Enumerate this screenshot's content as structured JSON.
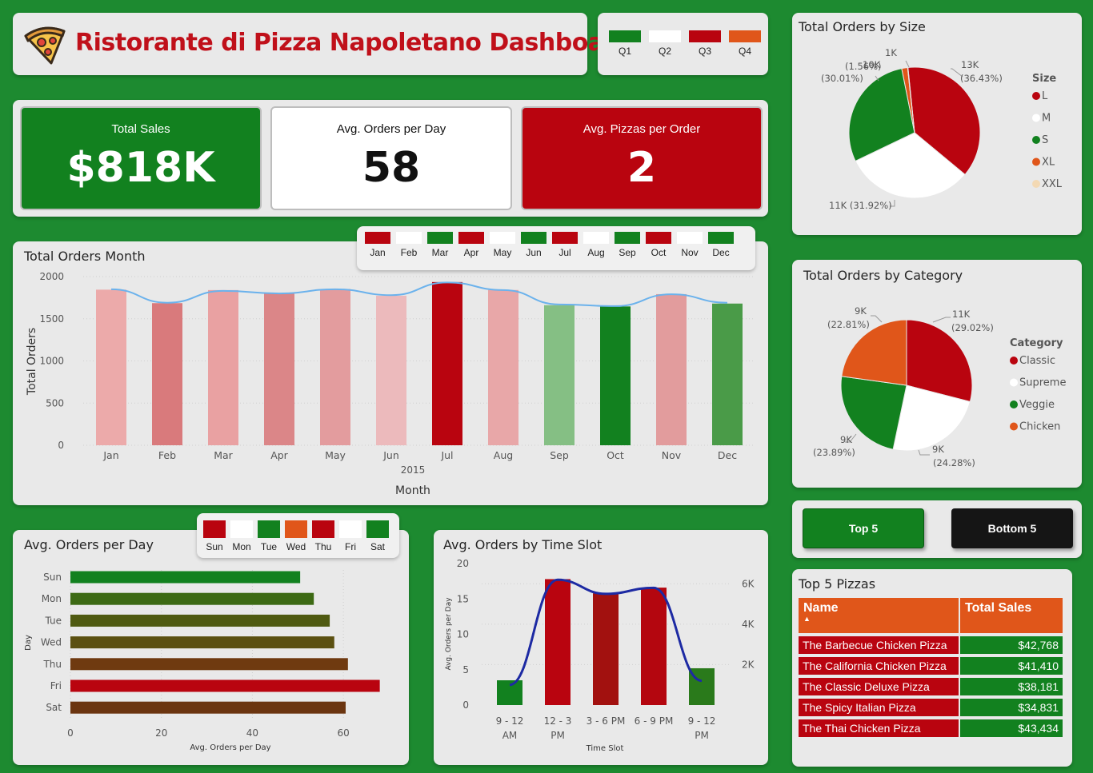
{
  "header": {
    "title": "Ristorante di Pizza Napoletano Dashboard",
    "logo_icon": "pizza-slice-icon"
  },
  "quarters": [
    {
      "label": "Q1",
      "color": "#12811f"
    },
    {
      "label": "Q2",
      "color": "#ffffff"
    },
    {
      "label": "Q3",
      "color": "#b9040f"
    },
    {
      "label": "Q4",
      "color": "#e0561a"
    }
  ],
  "kpis": {
    "total_sales": {
      "label": "Total Sales",
      "value": "$818K"
    },
    "avg_orders_day": {
      "label": "Avg. Orders per Day",
      "value": "58"
    },
    "avg_pizzas_order": {
      "label": "Avg. Pizzas per Order",
      "value": "2"
    }
  },
  "month_slicer": [
    {
      "label": "Jan",
      "color": "#b9040f"
    },
    {
      "label": "Feb",
      "color": "#ffffff"
    },
    {
      "label": "Mar",
      "color": "#12811f"
    },
    {
      "label": "Apr",
      "color": "#b9040f"
    },
    {
      "label": "May",
      "color": "#ffffff"
    },
    {
      "label": "Jun",
      "color": "#12811f"
    },
    {
      "label": "Jul",
      "color": "#b9040f"
    },
    {
      "label": "Aug",
      "color": "#ffffff"
    },
    {
      "label": "Sep",
      "color": "#12811f"
    },
    {
      "label": "Oct",
      "color": "#b9040f"
    },
    {
      "label": "Nov",
      "color": "#ffffff"
    },
    {
      "label": "Dec",
      "color": "#12811f"
    }
  ],
  "day_slicer": [
    {
      "label": "Sun",
      "color": "#b9040f"
    },
    {
      "label": "Mon",
      "color": "#ffffff"
    },
    {
      "label": "Tue",
      "color": "#12811f"
    },
    {
      "label": "Wed",
      "color": "#e0561a"
    },
    {
      "label": "Thu",
      "color": "#b9040f"
    },
    {
      "label": "Fri",
      "color": "#ffffff"
    },
    {
      "label": "Sat",
      "color": "#12811f"
    }
  ],
  "buttons": {
    "top5": "Top 5",
    "bottom5": "Bottom 5"
  },
  "top_pizzas": {
    "title": "Top 5 Pizzas",
    "headers": [
      "Name",
      "Total Sales"
    ],
    "rows": [
      {
        "name": "The Barbecue Chicken Pizza",
        "sales": "$42,768"
      },
      {
        "name": "The California Chicken Pizza",
        "sales": "$41,410"
      },
      {
        "name": "The Classic Deluxe Pizza",
        "sales": "$38,181"
      },
      {
        "name": "The Spicy Italian Pizza",
        "sales": "$34,831"
      },
      {
        "name": "The Thai Chicken Pizza",
        "sales": "$43,434"
      }
    ]
  },
  "chart_data": [
    {
      "id": "orders_by_size",
      "type": "pie",
      "title": "Total Orders by Size",
      "legend_title": "Size",
      "legend_position": "right",
      "categories": [
        "L",
        "M",
        "S",
        "XL",
        "XXL"
      ],
      "values": [
        13,
        11,
        10,
        0.5,
        0.03
      ],
      "data_labels": [
        "13K (36.43%)",
        "11K (31.92%)",
        "10K (30.01%)",
        "1K (1.56%)",
        ""
      ],
      "colors": [
        "#b9040f",
        "#ffffff",
        "#12811f",
        "#e0561a",
        "#f3d9b4"
      ]
    },
    {
      "id": "orders_by_category",
      "type": "pie",
      "title": "Total Orders by Category",
      "legend_title": "Category",
      "legend_position": "right",
      "categories": [
        "Classic",
        "Supreme",
        "Veggie",
        "Chicken"
      ],
      "values": [
        29.02,
        24.28,
        23.89,
        22.81
      ],
      "data_labels": [
        "11K (29.02%)",
        "9K (24.28%)",
        "9K (23.89%)",
        "9K (22.81%)"
      ],
      "colors": [
        "#b9040f",
        "#ffffff",
        "#12811f",
        "#e0561a"
      ]
    },
    {
      "id": "orders_by_month",
      "type": "bar",
      "title": "Total Orders Month",
      "xlabel": "Month",
      "x_sublabel": "2015",
      "ylabel": "Total Orders",
      "ylim": [
        0,
        2000
      ],
      "yticks": [
        0,
        500,
        1000,
        1500,
        2000
      ],
      "categories": [
        "Jan",
        "Feb",
        "Mar",
        "Apr",
        "May",
        "Jun",
        "Jul",
        "Aug",
        "Sep",
        "Oct",
        "Nov",
        "Dec"
      ],
      "values": [
        1845,
        1685,
        1840,
        1799,
        1853,
        1773,
        1935,
        1841,
        1661,
        1646,
        1792,
        1680
      ],
      "colors": [
        "#ecaaaa",
        "#d97a7c",
        "#e9a1a2",
        "#db8688",
        "#e39c9e",
        "#ecbabc",
        "#b9040f",
        "#e8a7a8",
        "#85bf84",
        "#12811f",
        "#e29c9d",
        "#4a9b48"
      ],
      "trend_line": [
        1850,
        1690,
        1830,
        1800,
        1850,
        1780,
        1930,
        1840,
        1670,
        1650,
        1790,
        1690
      ],
      "grid": true
    },
    {
      "id": "avg_orders_per_day",
      "type": "bar",
      "orientation": "horizontal",
      "title": "Avg. Orders per Day",
      "xlabel": "Avg. Orders per Day",
      "ylabel": "Day",
      "xlim": [
        0,
        70
      ],
      "xticks": [
        0,
        20,
        40,
        60
      ],
      "categories": [
        "Sun",
        "Mon",
        "Tue",
        "Wed",
        "Thu",
        "Fri",
        "Sat"
      ],
      "values": [
        50.5,
        53.5,
        57,
        58,
        61,
        68,
        60.5
      ],
      "colors": [
        "#12811f",
        "#3d6a14",
        "#4f5a11",
        "#5b5011",
        "#6f3a10",
        "#b9040f",
        "#6b3510"
      ]
    },
    {
      "id": "avg_orders_by_time_slot",
      "type": "bar",
      "title": "Avg. Orders by Time Slot",
      "xlabel": "Time Slot",
      "ylabel": "Avg. Orders per Day",
      "ylim": [
        0,
        20
      ],
      "yticks": [
        0,
        5,
        10,
        15,
        20
      ],
      "y2ticks": [
        "2K",
        "4K",
        "6K"
      ],
      "y2ticks_values": [
        2000,
        4000,
        6000
      ],
      "y2lim": [
        0,
        7000
      ],
      "categories": [
        [
          "9 - 12",
          "AM"
        ],
        [
          "12 - 3",
          "PM"
        ],
        [
          "3 - 6 PM"
        ],
        [
          "6 - 9 PM"
        ],
        [
          "9 - 12",
          "PM"
        ]
      ],
      "values": [
        3.5,
        17.8,
        15.8,
        16.6,
        5.2
      ],
      "colors": [
        "#12811f",
        "#b9040f",
        "#a2110f",
        "#b4060f",
        "#2a7a1b"
      ],
      "line_series": [
        1000,
        6200,
        5500,
        5800,
        1200
      ],
      "line_color": "#1d2aa3"
    }
  ]
}
